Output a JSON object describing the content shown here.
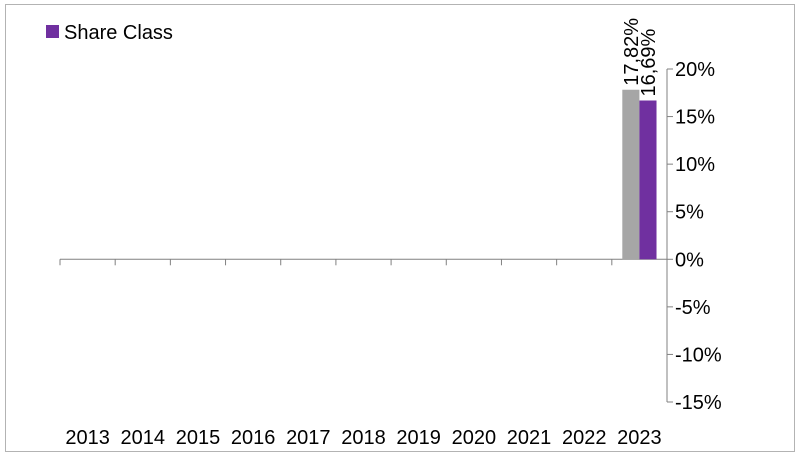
{
  "chart_data": {
    "type": "bar",
    "title": "",
    "xlabel": "",
    "ylabel": "",
    "categories": [
      "2013",
      "2014",
      "2015",
      "2016",
      "2017",
      "2018",
      "2019",
      "2020",
      "2021",
      "2022",
      "2023"
    ],
    "series": [
      {
        "name": "",
        "color": "#a6a6a6",
        "values": [
          null,
          null,
          null,
          null,
          null,
          null,
          null,
          null,
          null,
          null,
          17.82
        ],
        "data_labels": [
          "",
          "",
          "",
          "",
          "",
          "",
          "",
          "",
          "",
          "",
          "17,82%"
        ]
      },
      {
        "name": "Share Class",
        "color": "#7030a0",
        "values": [
          null,
          null,
          null,
          null,
          null,
          null,
          null,
          null,
          null,
          null,
          16.69
        ],
        "data_labels": [
          "",
          "",
          "",
          "",
          "",
          "",
          "",
          "",
          "",
          "",
          "16,69%"
        ]
      }
    ],
    "ylim": [
      -15,
      20
    ],
    "yticks": [
      -15,
      -10,
      -5,
      0,
      5,
      10,
      15,
      20
    ],
    "ytick_labels": [
      "-15%",
      "-10%",
      "-5%",
      "0%",
      "5%",
      "10%",
      "15%",
      "20%"
    ],
    "y_axis_side": "right",
    "legend": {
      "position": "top-left",
      "entries": [
        "Share Class"
      ]
    },
    "grid": false
  }
}
